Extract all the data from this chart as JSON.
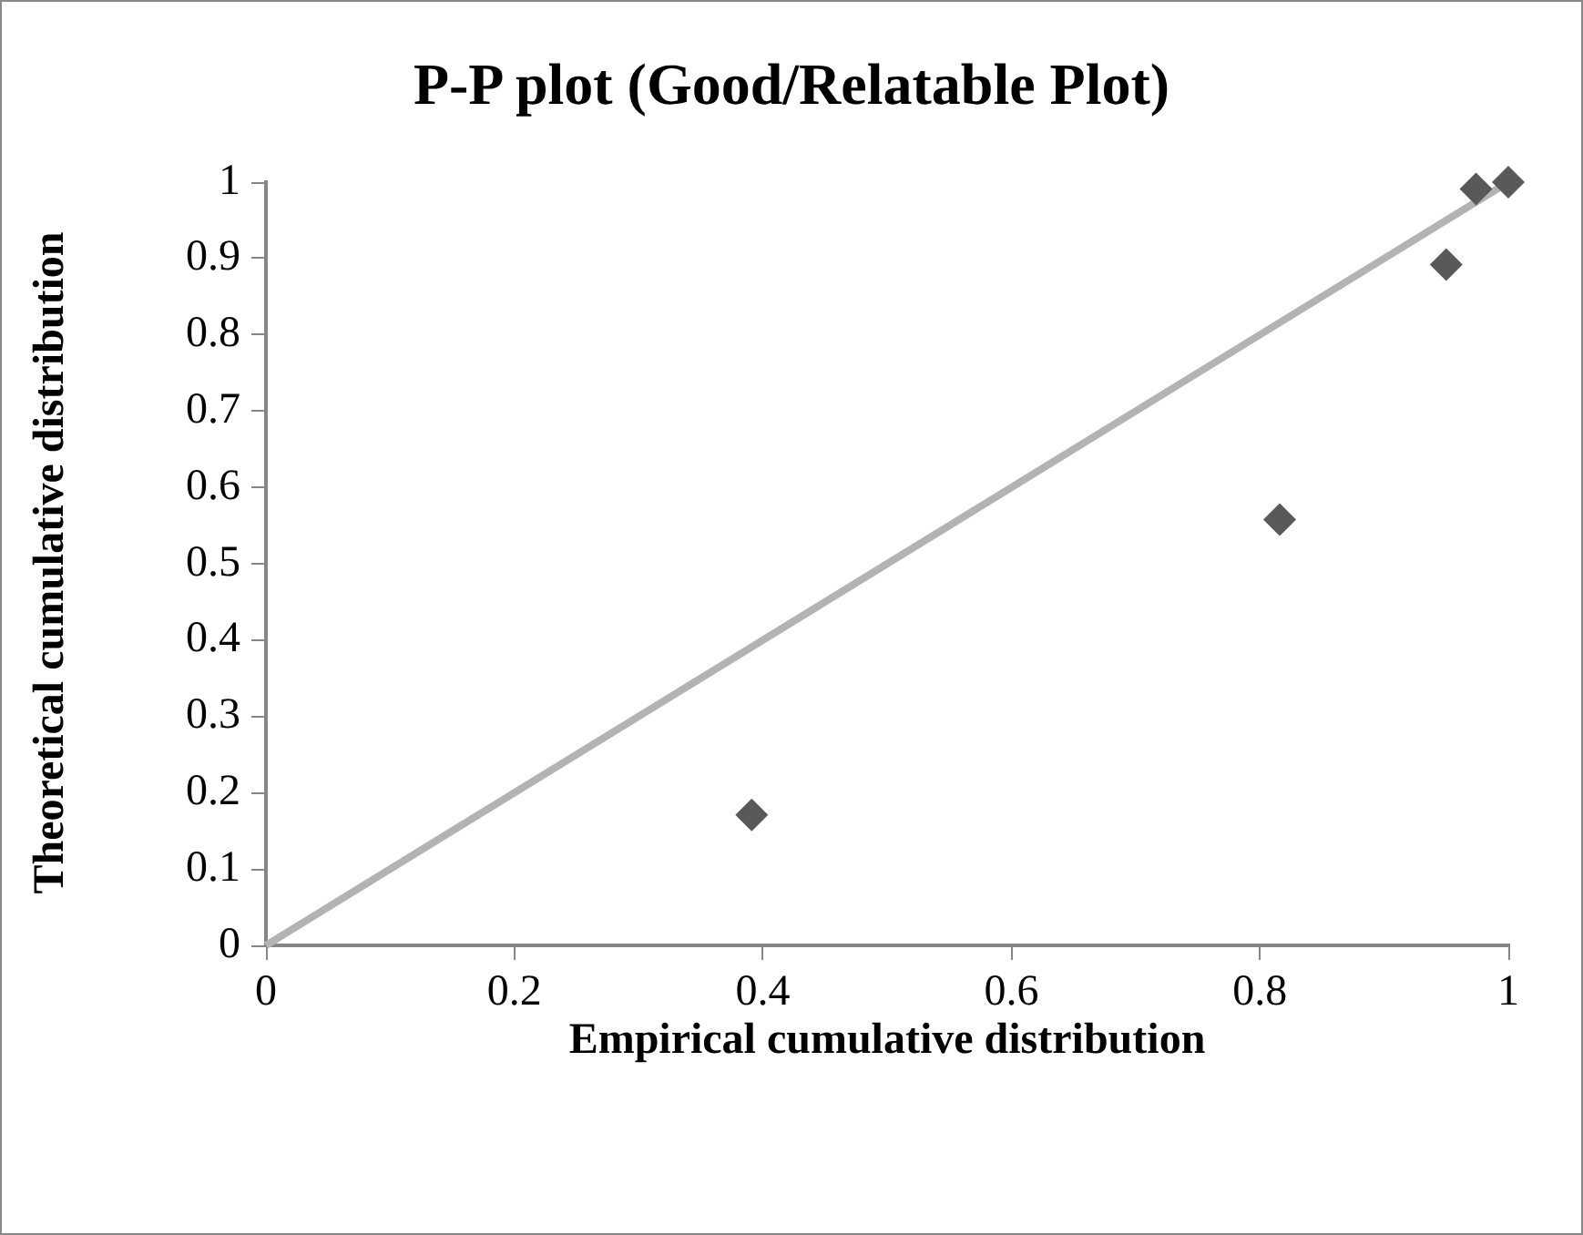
{
  "chart_data": {
    "type": "scatter",
    "title": "P-P plot (Good/Relatable Plot)",
    "xlabel": "Empirical cumulative distribution",
    "ylabel": "Theoretical cumulative distribution",
    "series": [
      {
        "type": "line",
        "color": "#b3b3b3",
        "x": [
          0,
          1
        ],
        "values": [
          0,
          1
        ],
        "marker": "none"
      },
      {
        "color": "#595959",
        "x": [
          0.391,
          0.816,
          0.95,
          0.974,
          1
        ],
        "values": [
          0.171,
          0.558,
          0.892,
          0.991,
          1
        ],
        "marker": "diamond"
      }
    ],
    "xlim": [
      0,
      1
    ],
    "xticks": [
      0,
      0.2,
      0.4,
      0.6,
      0.8,
      1
    ],
    "ylim": [
      0,
      1
    ],
    "yticks": [
      0,
      0.1,
      0.2,
      0.3,
      0.4,
      0.5,
      0.6,
      0.7,
      0.8,
      0.9,
      1
    ],
    "grid": false,
    "legend": false
  }
}
